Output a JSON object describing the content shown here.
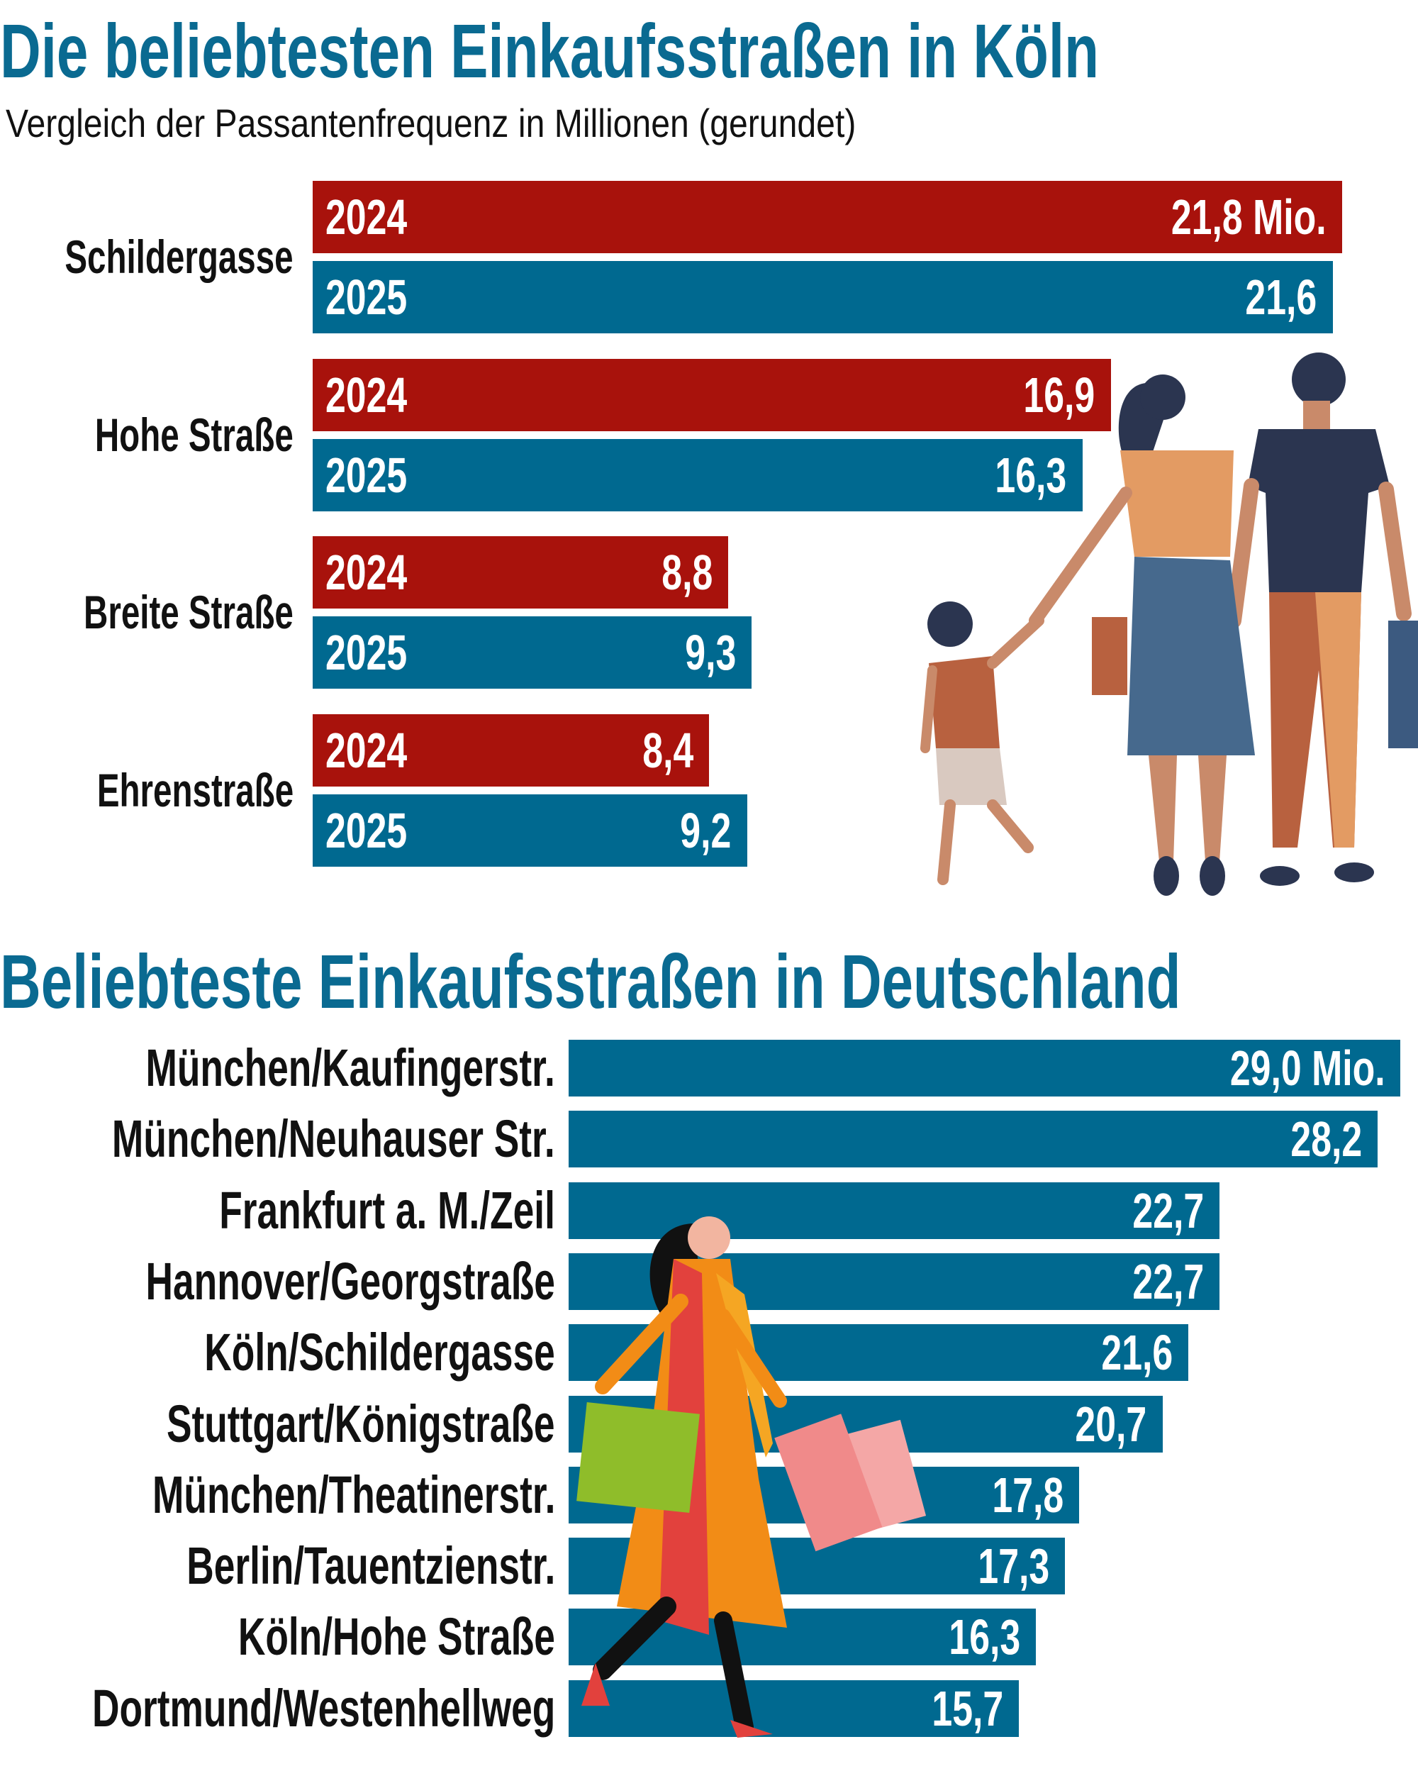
{
  "colors": {
    "title": "#0a6a91",
    "y2024": "#a8120c",
    "y2025": "#006990",
    "text": "#111111"
  },
  "chart_data": [
    {
      "type": "bar",
      "orientation": "horizontal",
      "title": "Die beliebtesten Einkaufsstraßen in Köln",
      "subtitle": "Vergleich der Passantenfrequenz in Millionen (gerundet)",
      "categories": [
        "Schildergasse",
        "Hohe Straße",
        "Breite Straße",
        "Ehrenstraße"
      ],
      "series": [
        {
          "name": "2024",
          "color": "#a8120c",
          "values": [
            21.8,
            16.9,
            8.8,
            8.4
          ],
          "labels": [
            "21,8 Mio.",
            "16,9",
            "8,8",
            "8,4"
          ]
        },
        {
          "name": "2025",
          "color": "#006990",
          "values": [
            21.6,
            16.3,
            9.3,
            9.2
          ],
          "labels": [
            "21,6",
            "16,3",
            "9,3",
            "9,2"
          ]
        }
      ],
      "grid": false
    },
    {
      "type": "bar",
      "orientation": "horizontal",
      "title": "Beliebteste Einkaufsstraßen in Deutschland",
      "categories": [
        "München/Kaufingerstr.",
        "München/Neuhauser Str.",
        "Frankfurt a. M./Zeil",
        "Hannover/Georgstraße",
        "Köln/Schildergasse",
        "Stuttgart/Königstraße",
        "München/Theatinerstr.",
        "Berlin/Tauentzienstr.",
        "Köln/Hohe Straße",
        "Dortmund/Westenhellweg"
      ],
      "values": [
        29.0,
        28.2,
        22.7,
        22.7,
        21.6,
        20.7,
        17.8,
        17.3,
        16.3,
        15.7
      ],
      "labels": [
        "29,0 Mio.",
        "28,2",
        "22,7",
        "22,7",
        "21,6",
        "20,7",
        "17,8",
        "17,3",
        "16,3",
        "15,7"
      ],
      "color": "#006990",
      "grid": false
    }
  ]
}
